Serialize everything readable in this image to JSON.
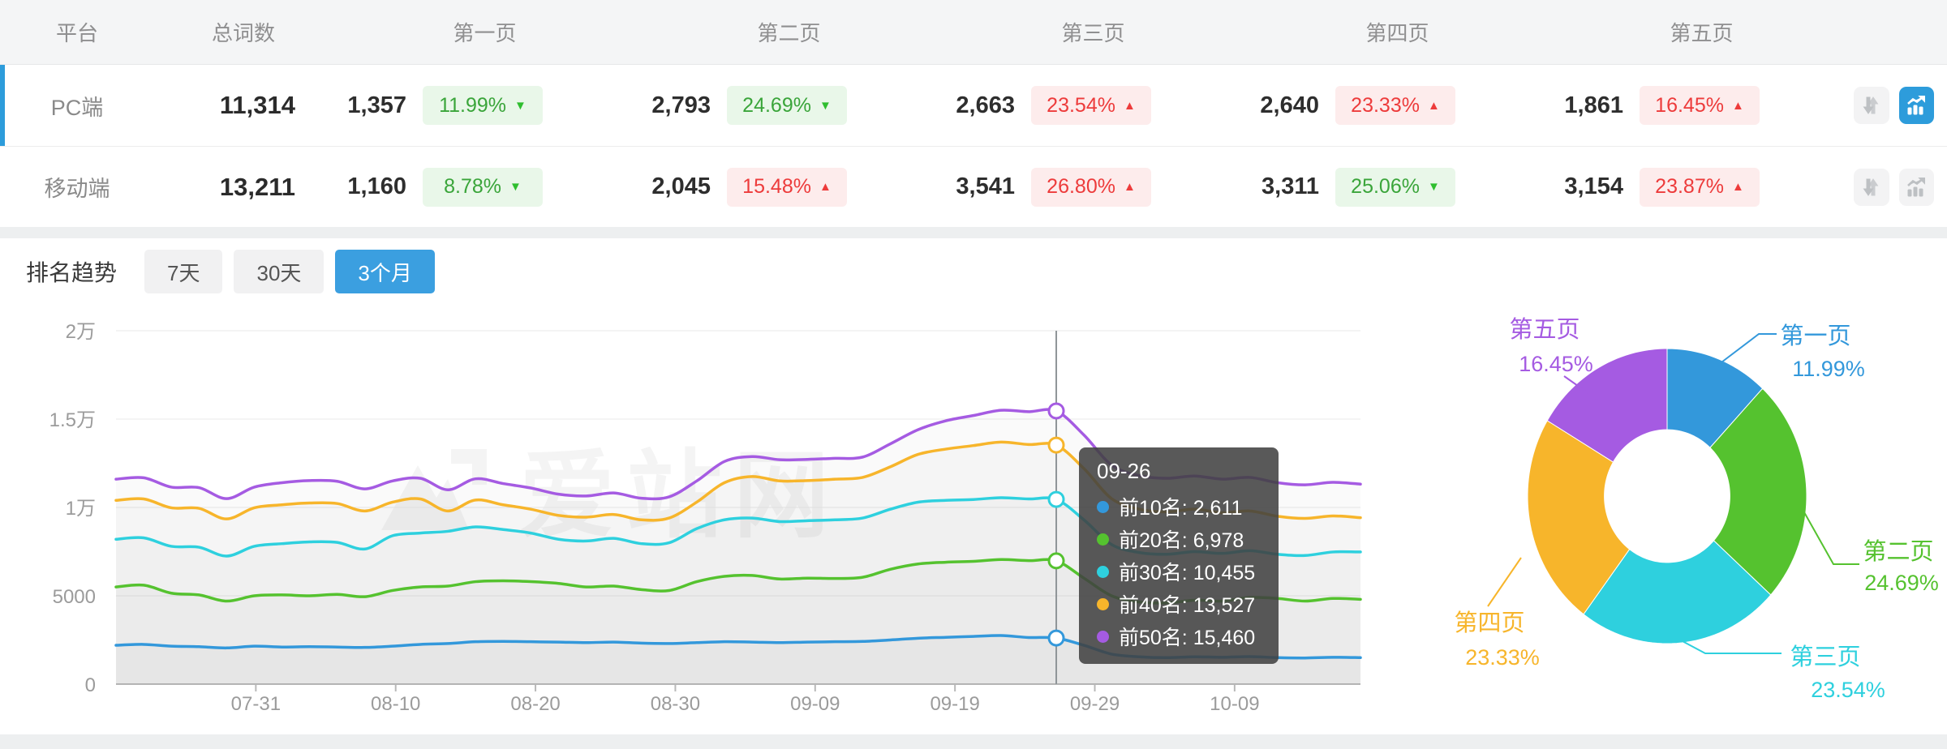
{
  "table": {
    "columns": [
      "平台",
      "总词数",
      "第一页",
      "第二页",
      "第三页",
      "第四页",
      "第五页"
    ],
    "rows": [
      {
        "platform": "PC端",
        "total": "11,314",
        "selected": true,
        "chart_active": true,
        "pages": [
          {
            "count": "1,357",
            "pct": "11.99%",
            "dir": "down",
            "tone": "green"
          },
          {
            "count": "2,793",
            "pct": "24.69%",
            "dir": "down",
            "tone": "green"
          },
          {
            "count": "2,663",
            "pct": "23.54%",
            "dir": "up",
            "tone": "red"
          },
          {
            "count": "2,640",
            "pct": "23.33%",
            "dir": "up",
            "tone": "red"
          },
          {
            "count": "1,861",
            "pct": "16.45%",
            "dir": "up",
            "tone": "red"
          }
        ]
      },
      {
        "platform": "移动端",
        "total": "13,211",
        "selected": false,
        "chart_active": false,
        "pages": [
          {
            "count": "1,160",
            "pct": "8.78%",
            "dir": "down",
            "tone": "green"
          },
          {
            "count": "2,045",
            "pct": "15.48%",
            "dir": "up",
            "tone": "red"
          },
          {
            "count": "3,541",
            "pct": "26.80%",
            "dir": "up",
            "tone": "red"
          },
          {
            "count": "3,311",
            "pct": "25.06%",
            "dir": "down",
            "tone": "green"
          },
          {
            "count": "3,154",
            "pct": "23.87%",
            "dir": "up",
            "tone": "red"
          }
        ]
      }
    ]
  },
  "trend": {
    "label": "排名趋势",
    "tabs": [
      {
        "label": "7天",
        "active": false
      },
      {
        "label": "30天",
        "active": false
      },
      {
        "label": "3个月",
        "active": true
      }
    ]
  },
  "watermark": {
    "text": "爱站网"
  },
  "chart_data": [
    {
      "type": "line",
      "title": "排名趋势 3个月",
      "x_ticks": [
        "07-31",
        "08-10",
        "08-20",
        "08-30",
        "09-09",
        "09-19",
        "09-29",
        "10-09"
      ],
      "x_tick_days": [
        10,
        20,
        30,
        40,
        50,
        60,
        70,
        80
      ],
      "x_total_days": 89,
      "y_ticks": [
        {
          "label": "0",
          "value": 0
        },
        {
          "label": "5000",
          "value": 5000
        },
        {
          "label": "1万",
          "value": 10000
        },
        {
          "label": "1.5万",
          "value": 15000
        },
        {
          "label": "2万",
          "value": 20000
        }
      ],
      "ylim": [
        0,
        20000
      ],
      "grid": true,
      "legend_position": "none",
      "series": [
        {
          "name": "前10名",
          "color": "#3398db",
          "values": [
            2200,
            2250,
            2150,
            2120,
            2050,
            2150,
            2100,
            2120,
            2100,
            2080,
            2150,
            2250,
            2300,
            2400,
            2420,
            2400,
            2380,
            2350,
            2380,
            2320,
            2300,
            2350,
            2400,
            2380,
            2350,
            2380,
            2400,
            2420,
            2500,
            2600,
            2650,
            2700,
            2750,
            2640,
            2611,
            2200,
            1700,
            1550,
            1500,
            1550,
            1520,
            1560,
            1500,
            1480,
            1520,
            1500
          ]
        },
        {
          "name": "前20名",
          "color": "#55c22f",
          "values": [
            5500,
            5600,
            5150,
            5050,
            4700,
            5000,
            5050,
            5000,
            5080,
            4950,
            5300,
            5500,
            5550,
            5800,
            5850,
            5800,
            5700,
            5500,
            5550,
            5350,
            5300,
            5800,
            6100,
            6150,
            5950,
            6000,
            5980,
            6050,
            6500,
            6800,
            6900,
            6950,
            7050,
            6990,
            6978,
            6000,
            5000,
            4650,
            4600,
            4750,
            4700,
            4900,
            4850,
            4700,
            4850,
            4800
          ]
        },
        {
          "name": "前30名",
          "color": "#2ed0de",
          "values": [
            8200,
            8280,
            7800,
            7750,
            7250,
            7800,
            7950,
            8050,
            8020,
            7650,
            8400,
            8550,
            8650,
            8900,
            8750,
            8550,
            8200,
            8100,
            8250,
            7950,
            8000,
            8800,
            9300,
            9400,
            9200,
            9250,
            9300,
            9400,
            9900,
            10300,
            10400,
            10450,
            10550,
            10480,
            10455,
            9300,
            7900,
            7450,
            7350,
            7500,
            7400,
            7550,
            7350,
            7280,
            7480,
            7480
          ]
        },
        {
          "name": "前40名",
          "color": "#f7b52b",
          "values": [
            10400,
            10480,
            9980,
            9950,
            9350,
            9980,
            10150,
            10250,
            10220,
            9800,
            10300,
            10480,
            9800,
            10420,
            10150,
            9900,
            9550,
            9450,
            9600,
            9300,
            9400,
            10300,
            11400,
            11750,
            11500,
            11520,
            11600,
            11700,
            12300,
            13000,
            13300,
            13500,
            13700,
            13560,
            13527,
            12200,
            10500,
            9900,
            9750,
            9900,
            9700,
            9800,
            9500,
            9380,
            9520,
            9420
          ]
        },
        {
          "name": "前50名",
          "color": "#a55be2",
          "values": [
            11600,
            11680,
            11150,
            11120,
            10500,
            11150,
            11400,
            11520,
            11480,
            11050,
            11500,
            11650,
            11000,
            11620,
            11350,
            11100,
            10750,
            10650,
            10820,
            10520,
            10600,
            11500,
            12600,
            12880,
            12700,
            12720,
            12780,
            12850,
            13600,
            14400,
            14900,
            15200,
            15500,
            15420,
            15460,
            14100,
            12400,
            11800,
            11650,
            11780,
            11600,
            11700,
            11400,
            11280,
            11420,
            11320
          ]
        }
      ],
      "tooltip": {
        "title": "09-26",
        "index": 34,
        "items": [
          {
            "name": "前10名",
            "value": "2,611"
          },
          {
            "name": "前20名",
            "value": "6,978"
          },
          {
            "name": "前30名",
            "value": "10,455"
          },
          {
            "name": "前40名",
            "value": "13,527"
          },
          {
            "name": "前50名",
            "value": "15,460"
          }
        ]
      }
    },
    {
      "type": "pie",
      "labels": [
        "第一页",
        "第二页",
        "第三页",
        "第四页",
        "第五页"
      ],
      "values": [
        11.99,
        24.69,
        23.54,
        23.33,
        16.45
      ],
      "percent_labels": [
        "11.99%",
        "24.69%",
        "23.54%",
        "23.33%",
        "16.45%"
      ],
      "colors": [
        "#3398db",
        "#55c22f",
        "#2ed0de",
        "#f7b52b",
        "#a55be2"
      ],
      "inner_radius_ratio": 0.45
    }
  ]
}
